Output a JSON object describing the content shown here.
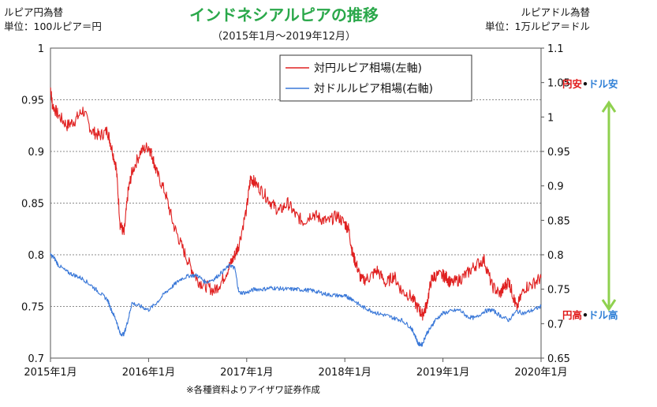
{
  "chart_data": {
    "type": "line",
    "title": "インドネシアルピアの推移",
    "subtitle": "（2015年1月〜2019年12月）",
    "left_axis_caption": [
      "ルピア円為替",
      "単位：100ルピア＝円"
    ],
    "right_axis_caption": [
      "ルピアドル為替",
      "単位：1万ルピア＝ドル"
    ],
    "note": "※各種資料よりアイザワ証券作成",
    "x_ticks": [
      "2015年1月",
      "2016年1月",
      "2017年1月",
      "2018年1月",
      "2019年1月",
      "2020年1月"
    ],
    "x_range": [
      2015.0,
      2020.0
    ],
    "ylim_left": [
      0.7,
      1.0
    ],
    "ylim_right": [
      0.65,
      1.1
    ],
    "yticks_left": [
      "1",
      "0.95",
      "0.9",
      "0.85",
      "0.8",
      "0.75",
      "0.7"
    ],
    "yticks_right": [
      "1.1",
      "1.05",
      "1",
      "0.95",
      "0.9",
      "0.85",
      "0.8",
      "0.75",
      "0.7",
      "0.65"
    ],
    "gridlines_left": [
      0.95,
      0.9,
      0.85,
      0.8,
      0.75
    ],
    "legend": {
      "placement": "top-center"
    },
    "annotations": {
      "weak": [
        {
          "text": "円安",
          "color": "#e01818"
        },
        {
          "text": "•",
          "color": "#111111"
        },
        {
          "text": "ドル安",
          "color": "#2f7fd6"
        }
      ],
      "strong": [
        {
          "text": "円高",
          "color": "#e01818"
        },
        {
          "text": "•",
          "color": "#111111"
        },
        {
          "text": "ドル高",
          "color": "#2f7fd6"
        }
      ],
      "arrow_color": "#8fd14f"
    },
    "series": [
      {
        "name": "対円ルピア相場(左軸)",
        "axis": "left",
        "color": "#e02020",
        "x": [
          2015.0,
          2015.02,
          2015.08,
          2015.17,
          2015.25,
          2015.33,
          2015.42,
          2015.5,
          2015.58,
          2015.62,
          2015.67,
          2015.71,
          2015.75,
          2015.79,
          2015.83,
          2015.92,
          2016.0,
          2016.04,
          2016.08,
          2016.17,
          2016.25,
          2016.33,
          2016.42,
          2016.5,
          2016.58,
          2016.67,
          2016.75,
          2016.83,
          2016.88,
          2016.92,
          2017.0,
          2017.04,
          2017.08,
          2017.17,
          2017.25,
          2017.33,
          2017.42,
          2017.5,
          2017.58,
          2017.67,
          2017.75,
          2017.83,
          2017.92,
          2018.0,
          2018.04,
          2018.08,
          2018.12,
          2018.17,
          2018.25,
          2018.33,
          2018.42,
          2018.5,
          2018.58,
          2018.67,
          2018.75,
          2018.79,
          2018.83,
          2018.88,
          2018.92,
          2019.0,
          2019.04,
          2019.08,
          2019.17,
          2019.25,
          2019.33,
          2019.42,
          2019.5,
          2019.58,
          2019.62,
          2019.67,
          2019.71,
          2019.75,
          2019.83,
          2019.92,
          2020.0
        ],
        "values": [
          0.962,
          0.945,
          0.935,
          0.925,
          0.93,
          0.94,
          0.92,
          0.915,
          0.92,
          0.905,
          0.885,
          0.83,
          0.82,
          0.86,
          0.88,
          0.9,
          0.905,
          0.895,
          0.88,
          0.86,
          0.83,
          0.81,
          0.79,
          0.775,
          0.77,
          0.765,
          0.775,
          0.79,
          0.8,
          0.81,
          0.845,
          0.875,
          0.87,
          0.86,
          0.85,
          0.842,
          0.85,
          0.838,
          0.832,
          0.84,
          0.835,
          0.832,
          0.838,
          0.83,
          0.825,
          0.8,
          0.79,
          0.775,
          0.778,
          0.785,
          0.772,
          0.78,
          0.765,
          0.76,
          0.748,
          0.742,
          0.75,
          0.775,
          0.78,
          0.78,
          0.778,
          0.772,
          0.776,
          0.782,
          0.79,
          0.795,
          0.77,
          0.762,
          0.768,
          0.775,
          0.762,
          0.748,
          0.768,
          0.772,
          0.778
        ]
      },
      {
        "name": "対ドルルピア相場(右軸)",
        "axis": "right",
        "color": "#3a78d8",
        "x": [
          2015.0,
          2015.04,
          2015.08,
          2015.17,
          2015.25,
          2015.33,
          2015.42,
          2015.5,
          2015.58,
          2015.62,
          2015.67,
          2015.71,
          2015.75,
          2015.79,
          2015.83,
          2015.92,
          2016.0,
          2016.08,
          2016.17,
          2016.25,
          2016.33,
          2016.42,
          2016.5,
          2016.58,
          2016.67,
          2016.75,
          2016.83,
          2016.88,
          2016.92,
          2017.0,
          2017.08,
          2017.17,
          2017.25,
          2017.33,
          2017.42,
          2017.5,
          2017.58,
          2017.67,
          2017.75,
          2017.83,
          2017.92,
          2018.0,
          2018.04,
          2018.08,
          2018.17,
          2018.25,
          2018.33,
          2018.42,
          2018.5,
          2018.58,
          2018.67,
          2018.71,
          2018.75,
          2018.79,
          2018.83,
          2018.88,
          2018.92,
          2019.0,
          2019.08,
          2019.17,
          2019.25,
          2019.33,
          2019.42,
          2019.5,
          2019.58,
          2019.67,
          2019.75,
          2019.83,
          2019.92,
          2020.0
        ],
        "values": [
          0.8,
          0.795,
          0.785,
          0.775,
          0.77,
          0.765,
          0.755,
          0.745,
          0.735,
          0.72,
          0.705,
          0.685,
          0.685,
          0.705,
          0.73,
          0.725,
          0.72,
          0.73,
          0.745,
          0.755,
          0.765,
          0.77,
          0.77,
          0.76,
          0.765,
          0.775,
          0.785,
          0.78,
          0.745,
          0.745,
          0.75,
          0.75,
          0.752,
          0.751,
          0.75,
          0.75,
          0.749,
          0.748,
          0.745,
          0.742,
          0.741,
          0.74,
          0.738,
          0.735,
          0.725,
          0.72,
          0.715,
          0.712,
          0.708,
          0.705,
          0.695,
          0.685,
          0.67,
          0.67,
          0.685,
          0.695,
          0.705,
          0.715,
          0.718,
          0.72,
          0.71,
          0.708,
          0.718,
          0.72,
          0.712,
          0.705,
          0.718,
          0.715,
          0.72,
          0.725
        ]
      }
    ]
  }
}
